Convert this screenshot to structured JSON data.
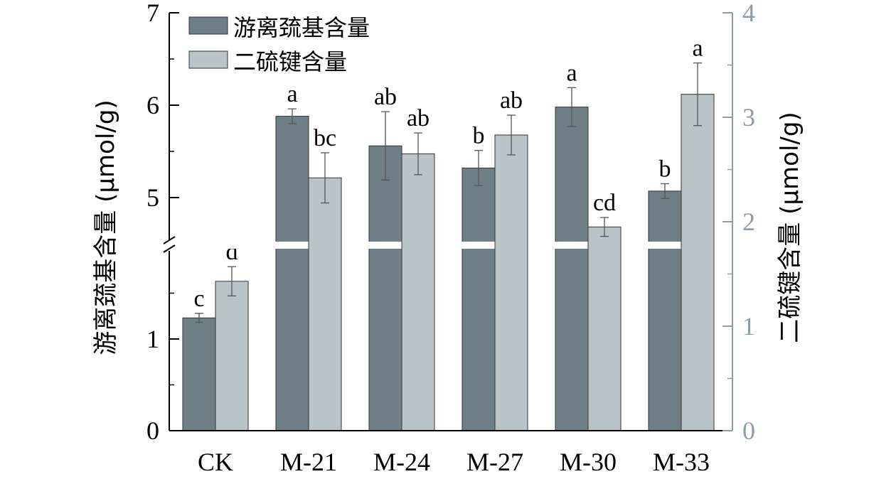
{
  "chart_data": {
    "type": "bar",
    "categories": [
      "CK",
      "M-21",
      "M-24",
      "M-27",
      "M-30",
      "M-33"
    ],
    "series": [
      {
        "name": "游离巯基含量",
        "axis": "left",
        "color": "#6e7f88",
        "values": [
          1.23,
          5.88,
          5.56,
          5.32,
          5.98,
          5.07
        ],
        "errors": [
          0.05,
          0.08,
          0.37,
          0.19,
          0.21,
          0.08
        ],
        "labels": [
          "c",
          "a",
          "ab",
          "b",
          "a",
          "b"
        ]
      },
      {
        "name": "二硫键含量",
        "axis": "right",
        "color": "#b8c4c8",
        "values": [
          1.43,
          2.42,
          2.65,
          2.83,
          1.95,
          3.22
        ],
        "errors": [
          0.14,
          0.24,
          0.2,
          0.19,
          0.09,
          0.3
        ],
        "labels": [
          "d",
          "bc",
          "ab",
          "ab",
          "cd",
          "a"
        ]
      }
    ],
    "y_left": {
      "label": "游离巯基含量 (μmol/g)",
      "segments": [
        [
          0,
          2
        ],
        [
          4.5,
          7
        ]
      ],
      "ticks": [
        0,
        1,
        5,
        6,
        7
      ]
    },
    "y_right": {
      "label": "二硫键含量 (μmol/g)",
      "ylim": [
        0,
        4
      ],
      "ticks": [
        0,
        1,
        2,
        3,
        4
      ],
      "color": "#8c9ca4"
    },
    "legend": {
      "position": "top-left"
    }
  }
}
